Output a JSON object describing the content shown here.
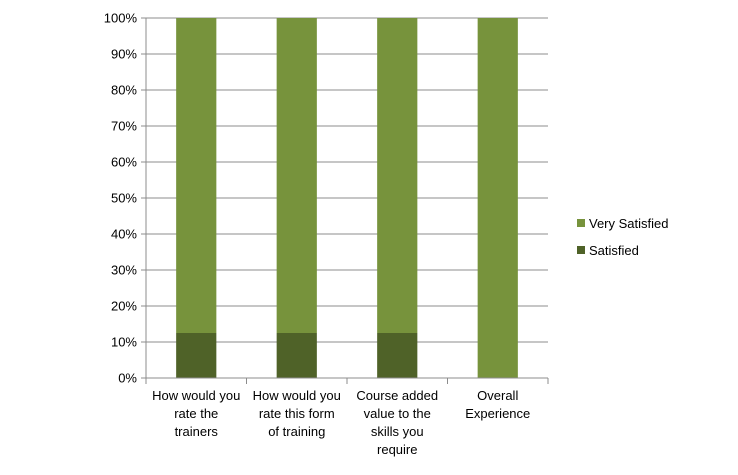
{
  "chart_data": {
    "type": "bar",
    "stacked": true,
    "percent": true,
    "categories": [
      [
        "How would you",
        "rate the",
        "trainers"
      ],
      [
        "How would you",
        "rate this form",
        "of training"
      ],
      [
        "Course added",
        "value to the",
        "skills you",
        "require"
      ],
      [
        "Overall",
        "Experience"
      ]
    ],
    "series": [
      {
        "name": "Satisfied",
        "color": "#4f6228",
        "values": [
          12.5,
          12.5,
          12.5,
          0
        ]
      },
      {
        "name": "Very Satisfied",
        "color": "#77933c",
        "values": [
          87.5,
          87.5,
          87.5,
          100
        ]
      }
    ],
    "y_ticks": [
      "0%",
      "10%",
      "20%",
      "30%",
      "40%",
      "50%",
      "60%",
      "70%",
      "80%",
      "90%",
      "100%"
    ],
    "ylim": [
      0,
      100
    ],
    "grid": true,
    "legend": {
      "position": "right",
      "entries": [
        "Very Satisfied",
        "Satisfied"
      ]
    }
  }
}
